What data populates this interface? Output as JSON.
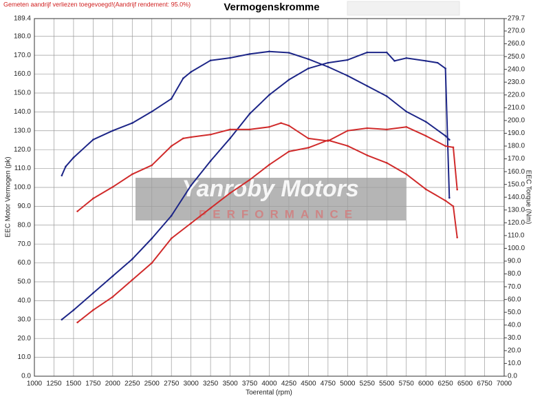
{
  "chart_data": {
    "type": "line",
    "title": "Vermogenskromme",
    "subtitle": "Gemeten aandrijf verliezen toegevoegd!(Aandrijf rendement: 95.0%)",
    "xlabel": "Toerental (rpm)",
    "ylabel": "EEC Motor Vermogen (pk)",
    "y2label": "EEC Torque (Nm)",
    "watermark": [
      "Yanroby Motors",
      "PERFORMANCE"
    ],
    "grid": true,
    "xlim": [
      1000,
      7000
    ],
    "xticks": [
      1000,
      1250,
      1500,
      1750,
      2000,
      2250,
      2500,
      2750,
      3000,
      3250,
      3500,
      3750,
      4000,
      4250,
      4500,
      4750,
      5000,
      5250,
      5500,
      5750,
      6000,
      6250,
      6500,
      6750,
      7000
    ],
    "ylim": [
      0,
      189.4
    ],
    "yticks": [
      {
        "value": 0,
        "label": "0.0"
      },
      {
        "value": 10,
        "label": "10.0"
      },
      {
        "value": 20,
        "label": "20.0"
      },
      {
        "value": 30,
        "label": "30.0"
      },
      {
        "value": 40,
        "label": "40.0"
      },
      {
        "value": 50,
        "label": "50.0"
      },
      {
        "value": 60,
        "label": "60.0"
      },
      {
        "value": 70,
        "label": "70.0"
      },
      {
        "value": 80,
        "label": "80.0"
      },
      {
        "value": 90,
        "label": "90.0"
      },
      {
        "value": 100,
        "label": "100.0"
      },
      {
        "value": 110,
        "label": "110.0"
      },
      {
        "value": 120,
        "label": "120.0"
      },
      {
        "value": 130,
        "label": "130.0"
      },
      {
        "value": 140,
        "label": "140.0"
      },
      {
        "value": 150,
        "label": "150.0"
      },
      {
        "value": 160,
        "label": "160.0"
      },
      {
        "value": 170,
        "label": "170.0"
      },
      {
        "value": 180,
        "label": "180.0"
      },
      {
        "value": 189.4,
        "label": "189.4"
      }
    ],
    "y2lim": [
      0,
      279.7
    ],
    "y2ticks": [
      {
        "value": 0,
        "label": "0.0"
      },
      {
        "value": 10,
        "label": "10.0"
      },
      {
        "value": 20,
        "label": "20.0"
      },
      {
        "value": 30,
        "label": "30.0"
      },
      {
        "value": 40,
        "label": "40.0"
      },
      {
        "value": 50,
        "label": "50.0"
      },
      {
        "value": 60,
        "label": "60.0"
      },
      {
        "value": 70,
        "label": "70.0"
      },
      {
        "value": 80,
        "label": "80.0"
      },
      {
        "value": 90,
        "label": "90.0"
      },
      {
        "value": 100,
        "label": "100.0"
      },
      {
        "value": 110,
        "label": "110.0"
      },
      {
        "value": 120,
        "label": "120.0"
      },
      {
        "value": 130,
        "label": "130.0"
      },
      {
        "value": 140,
        "label": "140.0"
      },
      {
        "value": 150,
        "label": "150.0"
      },
      {
        "value": 160,
        "label": "160.0"
      },
      {
        "value": 170,
        "label": "170.0"
      },
      {
        "value": 180,
        "label": "180.0"
      },
      {
        "value": 190,
        "label": "190.0"
      },
      {
        "value": 200,
        "label": "200.0"
      },
      {
        "value": 210,
        "label": "210.0"
      },
      {
        "value": 220,
        "label": "220.0"
      },
      {
        "value": 230,
        "label": "230.0"
      },
      {
        "value": 240,
        "label": "240.0"
      },
      {
        "value": 250,
        "label": "250.0"
      },
      {
        "value": 260,
        "label": "260.0"
      },
      {
        "value": 270,
        "label": "270.0"
      },
      {
        "value": 279.7,
        "label": "279.7"
      }
    ],
    "series": [
      {
        "color": "#1c2587",
        "x": [
          1350,
          1500,
          1750,
          2000,
          2250,
          2500,
          2750,
          3000,
          3250,
          3500,
          3750,
          4000,
          4250,
          4500,
          4750,
          5000,
          5250,
          5500,
          5600,
          5750,
          6000,
          6150,
          6250,
          6300
        ],
        "values": [
          30,
          35,
          44,
          53,
          62,
          73,
          85,
          101,
          114,
          126,
          139,
          149,
          157,
          163,
          166,
          167.5,
          171.5,
          171.5,
          167,
          168.5,
          167,
          166,
          163,
          94.5
        ]
      },
      {
        "color": "#1c2587",
        "axis": "y2",
        "x": [
          1350,
          1400,
          1500,
          1750,
          2000,
          2250,
          2500,
          2750,
          2900,
          3000,
          3250,
          3500,
          3750,
          4000,
          4250,
          4500,
          4750,
          5000,
          5250,
          5500,
          5750,
          6000,
          6250,
          6300
        ],
        "values": [
          157,
          164,
          171,
          185,
          192,
          198,
          207,
          217,
          233,
          238,
          247,
          249,
          252,
          254,
          253,
          248,
          242,
          235,
          227,
          219,
          207,
          199,
          188,
          185
        ]
      },
      {
        "color": "#d02a2a",
        "x": [
          1550,
          1750,
          2000,
          2250,
          2500,
          2750,
          3000,
          3250,
          3500,
          3750,
          4000,
          4250,
          4500,
          4750,
          5000,
          5250,
          5500,
          5750,
          6000,
          6250,
          6350,
          6400
        ],
        "values": [
          28.5,
          35,
          42,
          51,
          60,
          73,
          81,
          89,
          97,
          104,
          112,
          119,
          121,
          125,
          122,
          117,
          113,
          107,
          99,
          93,
          90,
          73.5
        ]
      },
      {
        "color": "#d02a2a",
        "axis": "y2",
        "x": [
          1550,
          1750,
          2000,
          2250,
          2500,
          2750,
          2900,
          3000,
          3250,
          3500,
          3750,
          4000,
          4150,
          4250,
          4500,
          4750,
          5000,
          5250,
          5500,
          5750,
          6000,
          6250,
          6350,
          6400
        ],
        "values": [
          129,
          139,
          148,
          158,
          165,
          180,
          186,
          187,
          189,
          193,
          193,
          195,
          198,
          196,
          186,
          184,
          192,
          194,
          193,
          195,
          188,
          180,
          179,
          146
        ]
      }
    ]
  }
}
